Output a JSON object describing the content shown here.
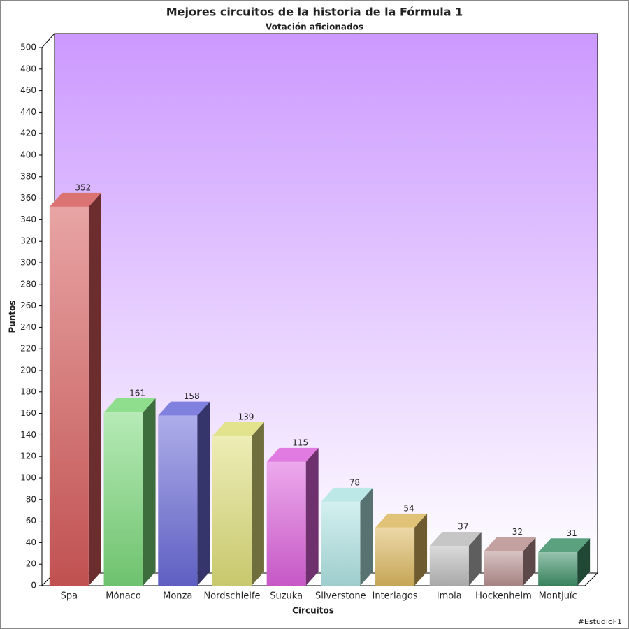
{
  "chart_data": {
    "type": "bar3d",
    "title": "Mejores circuitos de la historia de la Fórmula 1",
    "subtitle": "Votación aficionados",
    "x_label": "Circuitos",
    "y_label": "Puntos",
    "credit": "#EstudioF1",
    "categories": [
      "Spa",
      "Mónaco",
      "Monza",
      "Nordschleife",
      "Suzuka",
      "Silverstone",
      "Interlagos",
      "Imola",
      "Hockenheim",
      "Montjuïc"
    ],
    "values": [
      352,
      161,
      158,
      139,
      115,
      78,
      54,
      37,
      32,
      31
    ],
    "colors": [
      "#d65a5a",
      "#7ad87a",
      "#6a6ad8",
      "#dede7a",
      "#dc62dc",
      "#b0e4e4",
      "#dcb860",
      "#bcbcbc",
      "#b89090",
      "#3f9068"
    ],
    "ylim": [
      0,
      500
    ],
    "yticks": [
      0,
      20,
      40,
      60,
      80,
      100,
      120,
      140,
      160,
      180,
      200,
      220,
      240,
      260,
      280,
      300,
      320,
      340,
      360,
      380,
      400,
      420,
      440,
      460,
      480,
      500
    ]
  }
}
